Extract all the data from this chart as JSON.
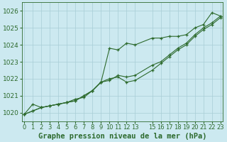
{
  "title": "Graphe pression niveau de la mer (hPa)",
  "bg_color": "#cce9f0",
  "line_color": "#2d6a2d",
  "ylim": [
    1019.5,
    1026.5
  ],
  "xlim": [
    -0.3,
    23.3
  ],
  "yticks": [
    1020,
    1021,
    1022,
    1023,
    1024,
    1025,
    1026
  ],
  "xticks": [
    0,
    1,
    2,
    3,
    4,
    5,
    6,
    7,
    8,
    9,
    10,
    11,
    12,
    13,
    15,
    16,
    17,
    18,
    19,
    20,
    21,
    22,
    23
  ],
  "series1_x": [
    0,
    1,
    2,
    3,
    4,
    5,
    6,
    7,
    8,
    9,
    10,
    11,
    12,
    13,
    15,
    16,
    17,
    18,
    19,
    20,
    21,
    22,
    23
  ],
  "series1_y": [
    1019.9,
    1020.5,
    1020.3,
    1020.4,
    1020.5,
    1020.6,
    1020.8,
    1020.9,
    1021.3,
    1021.8,
    1023.8,
    1023.7,
    1024.1,
    1024.0,
    1024.4,
    1024.4,
    1024.5,
    1024.5,
    1024.6,
    1025.0,
    1025.2,
    1025.9,
    1025.7
  ],
  "series2_x": [
    0,
    1,
    2,
    3,
    4,
    5,
    6,
    7,
    8,
    9,
    10,
    11,
    12,
    13,
    15,
    16,
    17,
    18,
    19,
    20,
    21,
    22,
    23
  ],
  "series2_y": [
    1019.9,
    1020.1,
    1020.3,
    1020.4,
    1020.5,
    1020.6,
    1020.7,
    1021.0,
    1021.3,
    1021.8,
    1021.9,
    1022.2,
    1022.1,
    1022.2,
    1022.8,
    1023.0,
    1023.4,
    1023.8,
    1024.1,
    1024.6,
    1025.0,
    1025.3,
    1025.7
  ],
  "series3_x": [
    0,
    1,
    2,
    3,
    4,
    5,
    6,
    7,
    8,
    9,
    10,
    11,
    12,
    13,
    15,
    16,
    17,
    18,
    19,
    20,
    21,
    22,
    23
  ],
  "series3_y": [
    1019.9,
    1020.1,
    1020.3,
    1020.4,
    1020.5,
    1020.6,
    1020.7,
    1021.0,
    1021.3,
    1021.8,
    1022.0,
    1022.1,
    1021.8,
    1021.9,
    1022.5,
    1022.9,
    1023.3,
    1023.7,
    1024.0,
    1024.5,
    1024.9,
    1025.2,
    1025.6
  ],
  "ylabel_fontsize": 6.5,
  "xlabel_fontsize": 6,
  "title_fontsize": 7.5
}
